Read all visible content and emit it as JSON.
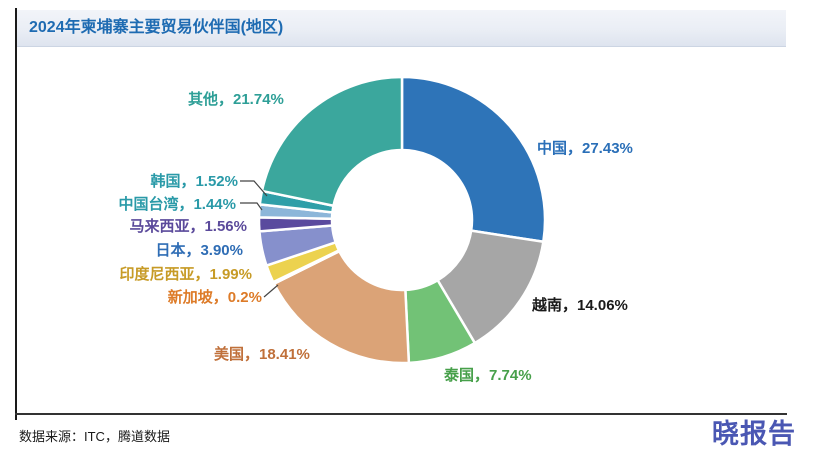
{
  "header": {
    "title": "2024年柬埔寨主要贸易伙伴国(地区)"
  },
  "chart_data": {
    "type": "pie",
    "donut": true,
    "title": "2024年柬埔寨主要贸易伙伴国(地区)",
    "unit": "%",
    "start_angle": "top",
    "direction": "clockwise",
    "slices": [
      {
        "id": "china",
        "label": "中国",
        "value": 27.43,
        "display": "中国，27.43%",
        "color": "#2e74b8",
        "label_color": "#2a6fb8"
      },
      {
        "id": "vietnam",
        "label": "越南",
        "value": 14.06,
        "display": "越南，14.06%",
        "color": "#a6a6a6",
        "label_color": "#1a1a1a"
      },
      {
        "id": "thailand",
        "label": "泰国",
        "value": 7.74,
        "display": "泰国，7.74%",
        "color": "#72c276",
        "label_color": "#47a04a"
      },
      {
        "id": "usa",
        "label": "美国",
        "value": 18.41,
        "display": "美国，18.41%",
        "color": "#dba377",
        "label_color": "#c0703a"
      },
      {
        "id": "singapore",
        "label": "新加坡",
        "value": 0.2,
        "display": "新加坡，0.2%",
        "color": "#e58b2e",
        "label_color": "#dd7b28"
      },
      {
        "id": "indonesia",
        "label": "印度尼西亚",
        "value": 1.99,
        "display": "印度尼西亚，1.99%",
        "color": "#ecd24f",
        "label_color": "#c79b26"
      },
      {
        "id": "japan",
        "label": "日本",
        "value": 3.9,
        "display": "日本，3.90%",
        "color": "#8690cc",
        "label_color": "#2f6db5"
      },
      {
        "id": "malaysia",
        "label": "马来西亚",
        "value": 1.56,
        "display": "马来西亚，1.56%",
        "color": "#5a4a9e",
        "label_color": "#5b4a9b"
      },
      {
        "id": "taiwan",
        "label": "中国台湾",
        "value": 1.44,
        "display": "中国台湾，1.44%",
        "color": "#8cb6d9",
        "label_color": "#2a9aa8"
      },
      {
        "id": "korea",
        "label": "韩国",
        "value": 1.52,
        "display": "韩国，1.52%",
        "color": "#2f9fa8",
        "label_color": "#2a9aa8"
      },
      {
        "id": "others",
        "label": "其他",
        "value": 21.74,
        "display": "其他，21.74%",
        "color": "#3ba79d",
        "label_color": "#2e9f97"
      }
    ]
  },
  "footer": {
    "source": "数据来源：ITC，腾道数据",
    "brand": "晓报告"
  }
}
